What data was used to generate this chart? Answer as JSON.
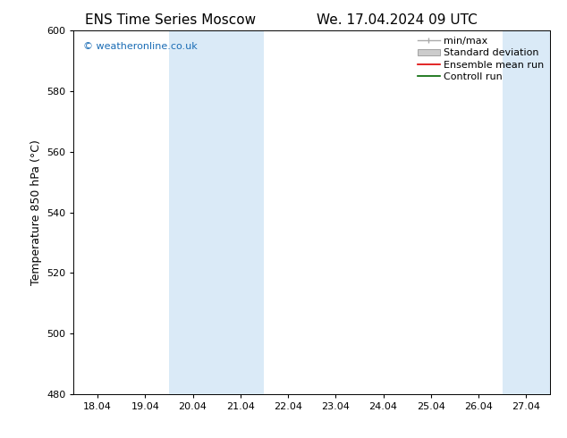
{
  "title_left": "ENS Time Series Moscow",
  "title_right": "We. 17.04.2024 09 UTC",
  "ylabel": "Temperature 850 hPa (°C)",
  "ylim": [
    480,
    600
  ],
  "yticks": [
    480,
    500,
    520,
    540,
    560,
    580,
    600
  ],
  "x_labels": [
    "18.04",
    "19.04",
    "20.04",
    "21.04",
    "22.04",
    "23.04",
    "24.04",
    "25.04",
    "26.04",
    "27.04"
  ],
  "x_positions": [
    0,
    1,
    2,
    3,
    4,
    5,
    6,
    7,
    8,
    9
  ],
  "xlim_start": -0.5,
  "xlim_end": 9.5,
  "shaded_regions": [
    {
      "xmin": 1.5,
      "xmax": 3.5,
      "color": "#daeaf7"
    },
    {
      "xmin": 8.5,
      "xmax": 9.5,
      "color": "#daeaf7"
    }
  ],
  "watermark_text": "© weatheronline.co.uk",
  "watermark_color": "#1a6cb5",
  "background_color": "#ffffff",
  "legend_items": [
    {
      "label": "min/max",
      "type": "errorbar",
      "color": "#aaaaaa"
    },
    {
      "label": "Standard deviation",
      "type": "patch",
      "color": "#cccccc"
    },
    {
      "label": "Ensemble mean run",
      "type": "line",
      "color": "#dd0000"
    },
    {
      "label": "Controll run",
      "type": "line",
      "color": "#006600"
    }
  ],
  "tick_font_size": 8,
  "label_font_size": 9,
  "title_font_size": 11,
  "watermark_font_size": 8,
  "legend_font_size": 8
}
